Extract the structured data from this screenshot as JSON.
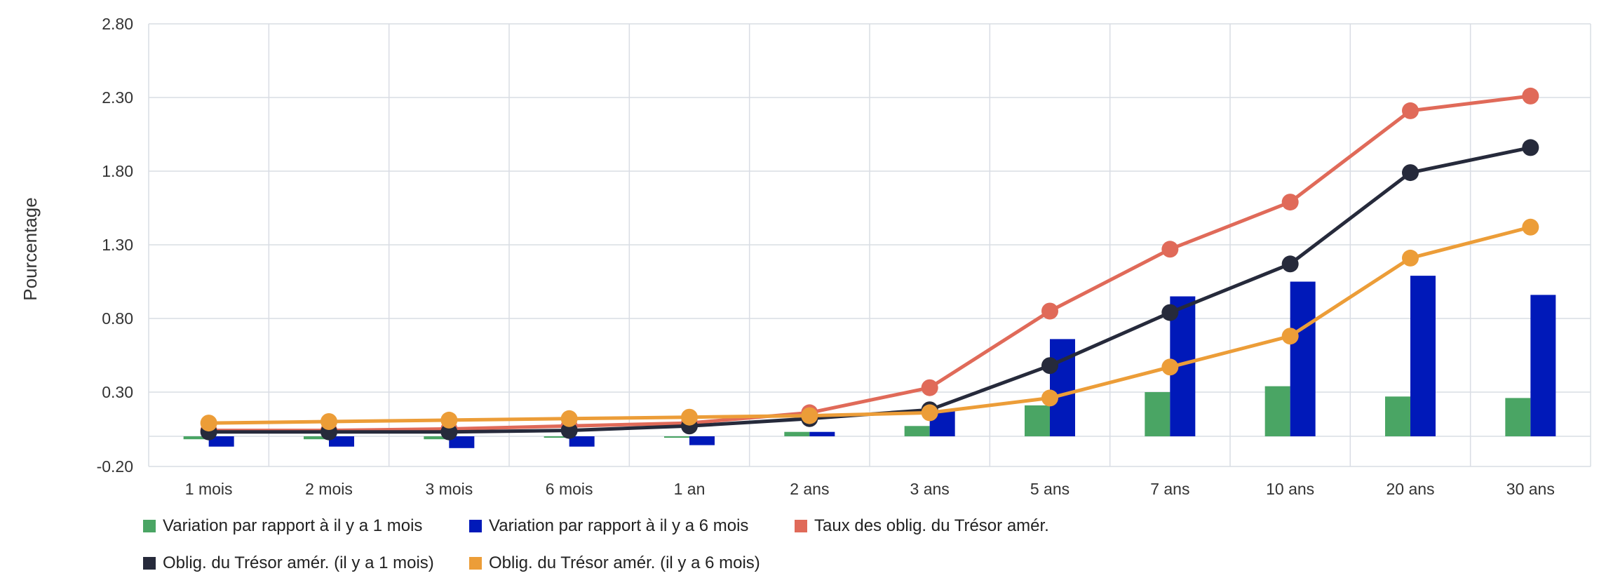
{
  "chart_data": {
    "type": "bar",
    "ylabel": "Pourcentage",
    "xlabel": "",
    "ylim": [
      -0.2,
      2.8
    ],
    "yticks": [
      "2.80",
      "2.30",
      "1.80",
      "1.30",
      "0.80",
      "0.30",
      "-0.20"
    ],
    "grid": true,
    "legend_position": "bottom",
    "categories": [
      "1 mois",
      "2 mois",
      "3 mois",
      "6 mois",
      "1 an",
      "2 ans",
      "3 ans",
      "5 ans",
      "7 ans",
      "10 ans",
      "20 ans",
      "30 ans"
    ],
    "bar_series": [
      {
        "name": "Variation par rapport à il y a 1 mois",
        "color": "#4aa564",
        "values": [
          -0.02,
          -0.02,
          -0.02,
          -0.01,
          -0.01,
          0.03,
          0.07,
          0.21,
          0.3,
          0.34,
          0.27,
          0.26
        ]
      },
      {
        "name": "Variation par rapport à il y a 6 mois",
        "color": "#0019b9",
        "values": [
          -0.07,
          -0.07,
          -0.08,
          -0.07,
          -0.06,
          0.03,
          0.17,
          0.66,
          0.95,
          1.05,
          1.09,
          0.96
        ]
      }
    ],
    "line_series": [
      {
        "name": "Taux des oblig. du Trésor amér.",
        "color": "#e06a59",
        "values": [
          0.04,
          0.04,
          0.05,
          0.07,
          0.09,
          0.16,
          0.33,
          0.85,
          1.27,
          1.59,
          2.21,
          2.31
        ]
      },
      {
        "name": "Oblig. du Trésor amér. (il y a 1 mois)",
        "color": "#262a3b",
        "values": [
          0.03,
          0.03,
          0.03,
          0.04,
          0.07,
          0.12,
          0.18,
          0.48,
          0.84,
          1.17,
          1.79,
          1.96
        ]
      },
      {
        "name": "Oblig. du Trésor amér. (il y a 6 mois)",
        "color": "#ec9d38",
        "values": [
          0.09,
          0.1,
          0.11,
          0.12,
          0.13,
          0.14,
          0.16,
          0.26,
          0.47,
          0.68,
          1.21,
          1.42
        ]
      }
    ]
  }
}
